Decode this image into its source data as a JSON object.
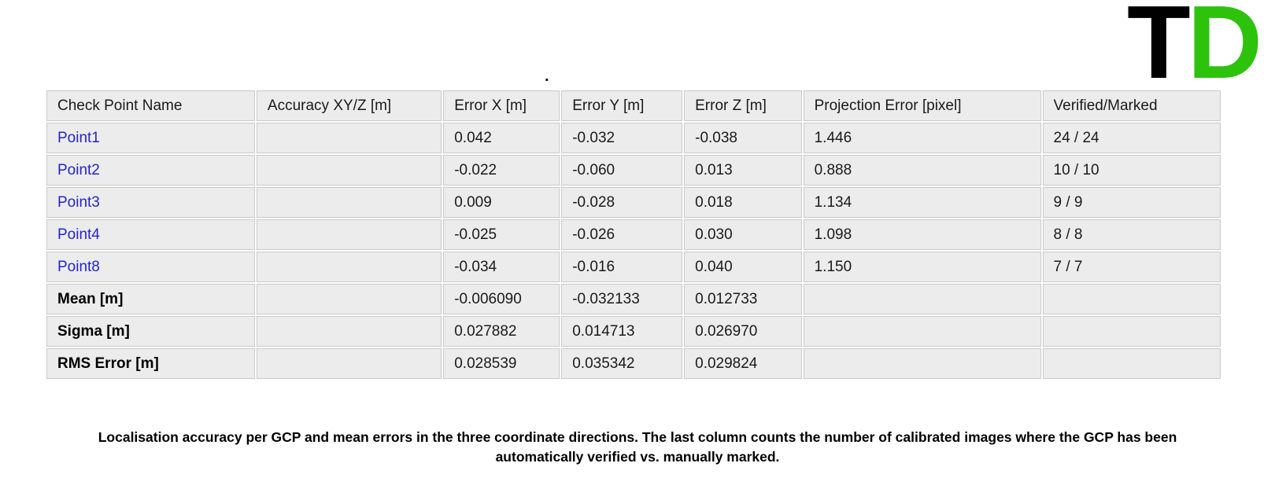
{
  "colors": {
    "logo_green": "#2dc20b",
    "link_blue": "#2424cc",
    "cell_bg": "#ececec",
    "cell_border": "#c9c9c9"
  },
  "logo": {
    "letter_t": "T",
    "letter_d": "D"
  },
  "stray_text": ".",
  "table": {
    "columns": [
      "Check Point Name",
      "Accuracy XY/Z [m]",
      "Error X [m]",
      "Error Y [m]",
      "Error Z [m]",
      "Projection Error [pixel]",
      "Verified/Marked"
    ],
    "rows": [
      {
        "name": "Point1",
        "accuracy": "",
        "error_x": "0.042",
        "error_y": "-0.032",
        "error_z": "-0.038",
        "projection_error": "1.446",
        "verified_marked": "24 / 24",
        "is_link": true,
        "is_bold": false
      },
      {
        "name": "Point2",
        "accuracy": "",
        "error_x": "-0.022",
        "error_y": "-0.060",
        "error_z": "0.013",
        "projection_error": "0.888",
        "verified_marked": "10 / 10",
        "is_link": true,
        "is_bold": false
      },
      {
        "name": "Point3",
        "accuracy": "",
        "error_x": "0.009",
        "error_y": "-0.028",
        "error_z": "0.018",
        "projection_error": "1.134",
        "verified_marked": "9 / 9",
        "is_link": true,
        "is_bold": false
      },
      {
        "name": "Point4",
        "accuracy": "",
        "error_x": "-0.025",
        "error_y": "-0.026",
        "error_z": "0.030",
        "projection_error": "1.098",
        "verified_marked": "8 / 8",
        "is_link": true,
        "is_bold": false
      },
      {
        "name": "Point8",
        "accuracy": "",
        "error_x": "-0.034",
        "error_y": "-0.016",
        "error_z": "0.040",
        "projection_error": "1.150",
        "verified_marked": "7 / 7",
        "is_link": true,
        "is_bold": false
      },
      {
        "name": "Mean [m]",
        "accuracy": "",
        "error_x": "-0.006090",
        "error_y": "-0.032133",
        "error_z": "0.012733",
        "projection_error": "",
        "verified_marked": "",
        "is_link": false,
        "is_bold": true
      },
      {
        "name": "Sigma [m]",
        "accuracy": "",
        "error_x": "0.027882",
        "error_y": "0.014713",
        "error_z": "0.026970",
        "projection_error": "",
        "verified_marked": "",
        "is_link": false,
        "is_bold": true
      },
      {
        "name": "RMS Error [m]",
        "accuracy": "",
        "error_x": "0.028539",
        "error_y": "0.035342",
        "error_z": "0.029824",
        "projection_error": "",
        "verified_marked": "",
        "is_link": false,
        "is_bold": true
      }
    ]
  },
  "caption": "Localisation accuracy per GCP and mean errors in the three coordinate directions. The last column counts the number of calibrated images where the GCP has been automatically verified vs. manually marked."
}
